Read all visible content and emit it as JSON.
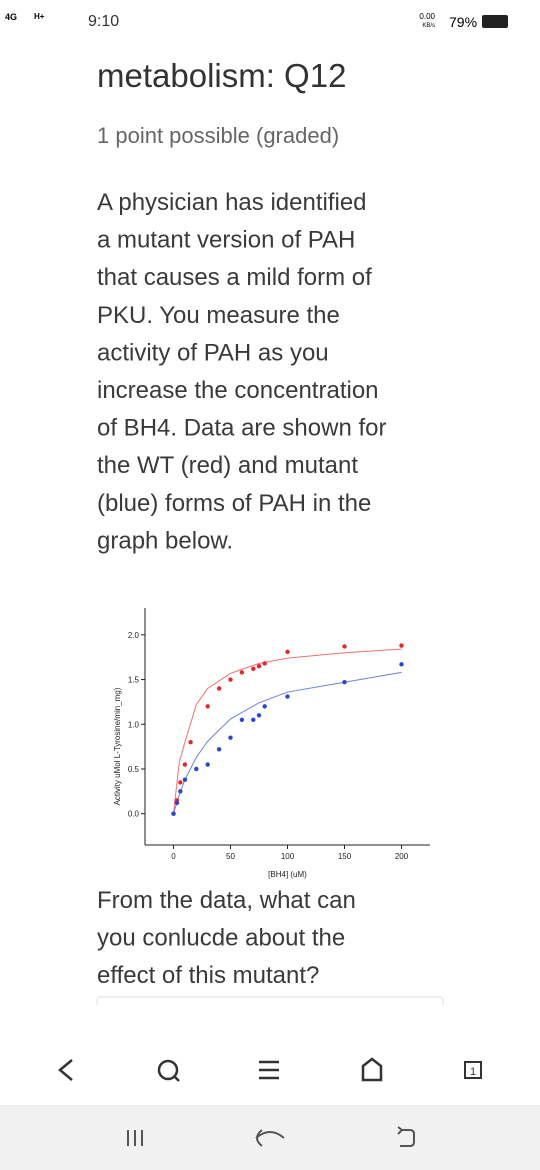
{
  "status_bar": {
    "network": "4G",
    "network2": "H+",
    "time": "9:10",
    "speed": "0.00",
    "speed_unit": "KB/s",
    "battery": "79%"
  },
  "header": {
    "title": "metabolism: Q12",
    "subtitle": "1 point possible (graded)"
  },
  "question": {
    "lines": [
      "A physician has identified",
      "a mutant version of PAH",
      "that causes a mild form of",
      "PKU. You measure the",
      "activity of PAH as you",
      "increase the concentration",
      "of BH4. Data are shown for",
      "the WT (red) and mutant",
      "(blue) forms of PAH in the",
      "graph below."
    ]
  },
  "chart_data": {
    "type": "scatter",
    "x_label": "[BH4] (uM)",
    "y_label": "Activity uMol L-Tyrosine/min_mg)",
    "xlim": [
      -25,
      225
    ],
    "ylim": [
      -0.35,
      2.3
    ],
    "xticks": [
      0,
      50,
      100,
      150,
      200
    ],
    "yticks": [
      {
        "value": 0,
        "label": "0.0"
      },
      {
        "value": 0.5,
        "label": "0.5"
      },
      {
        "value": 1,
        "label": "1.0"
      },
      {
        "value": 1.5,
        "label": "1.5"
      },
      {
        "value": 2,
        "label": "2.0"
      }
    ],
    "series": [
      {
        "style": "points",
        "color": "#e8262a",
        "x": [
          0,
          3,
          6,
          10,
          15,
          30,
          40,
          50,
          60,
          70,
          75,
          80,
          100,
          150,
          200
        ],
        "values": [
          0,
          0.15,
          0.35,
          0.55,
          0.8,
          1.2,
          1.4,
          1.5,
          1.58,
          1.62,
          1.65,
          1.68,
          1.81,
          1.87,
          1.88
        ]
      },
      {
        "style": "points",
        "color": "#2646d6",
        "x": [
          0,
          3,
          6,
          10,
          20,
          30,
          40,
          50,
          60,
          70,
          75,
          80,
          100,
          150,
          200
        ],
        "values": [
          0,
          0.12,
          0.25,
          0.38,
          0.5,
          0.55,
          0.72,
          0.85,
          1.05,
          1.05,
          1.1,
          1.2,
          1.31,
          1.47,
          1.67
        ]
      },
      {
        "style": "curve",
        "color": "#f07070",
        "x": [
          0,
          5,
          10,
          20,
          30,
          50,
          75,
          100,
          150,
          200
        ],
        "values": [
          0,
          0.57,
          0.8,
          1.22,
          1.4,
          1.57,
          1.68,
          1.74,
          1.8,
          1.84
        ]
      },
      {
        "style": "curve",
        "color": "#7080e0",
        "x": [
          0,
          5,
          10,
          20,
          30,
          50,
          75,
          100,
          150,
          200
        ],
        "values": [
          0,
          0.21,
          0.38,
          0.63,
          0.81,
          1.06,
          1.24,
          1.36,
          1.47,
          1.58
        ]
      }
    ]
  },
  "followup": {
    "lines": [
      "From the data, what can",
      "you conlucde about the",
      "effect of this mutant?"
    ]
  },
  "nav": {
    "tab_count": "1"
  }
}
